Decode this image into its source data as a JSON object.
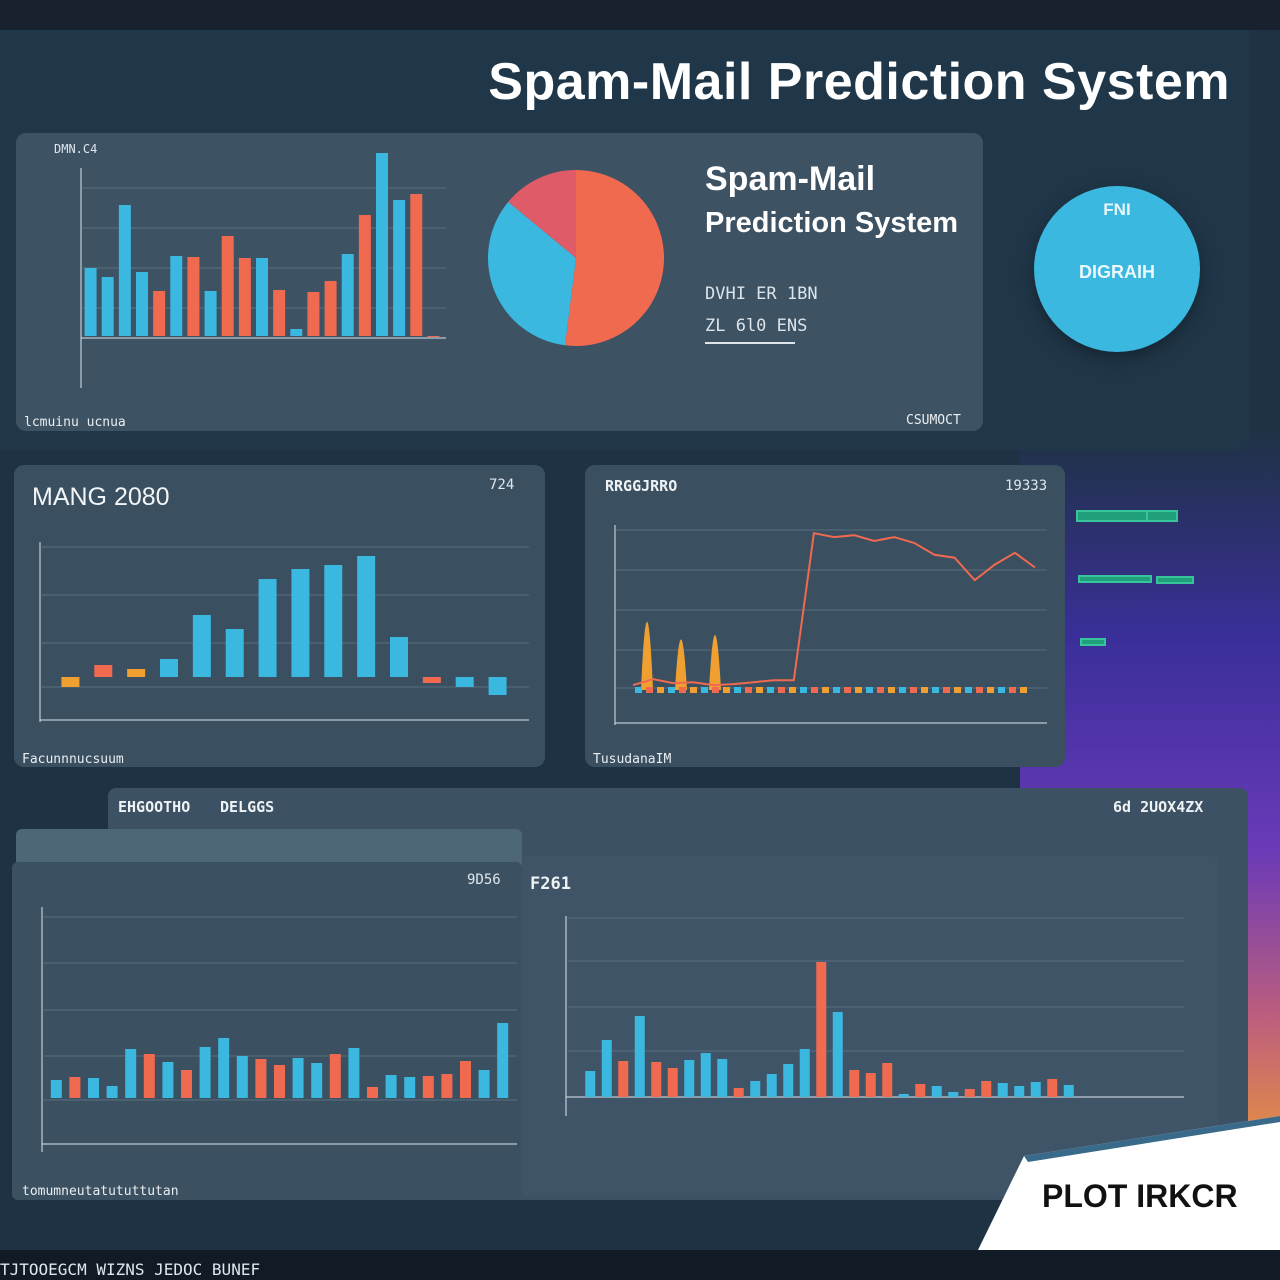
{
  "header": {
    "title": "Spam-Mail Prediction System"
  },
  "overview": {
    "chart_label": "DMN.C4",
    "footer_left": "lcmuinu ucnua",
    "footer_right": "CSUMOCT",
    "side_title": "Spam-Mail",
    "side_subtitle": "Prediction System",
    "side_line1": "DVHI ER 1BN",
    "side_line2": "ZL 6l0 ENS",
    "circle_top": "FNI",
    "circle_label": "DIGRAIH"
  },
  "panel_a": {
    "title": "MANG 2080",
    "corner": "724",
    "footer": "Facunnnucsuum"
  },
  "panel_b": {
    "title": "RRGGJRRO",
    "corner": "19333",
    "footer": "TusudanaIM"
  },
  "panel_c": {
    "tab_left": "EHGOOTHO",
    "tab_mid": "DELGGS",
    "corner": "9D56",
    "footer": "tomumneutatututtutan"
  },
  "panel_d": {
    "title": "F261",
    "header_right": "6d 2UOX4ZX"
  },
  "badge": {
    "label": "PLOT IRKCR"
  },
  "bottom": {
    "text": "TJTOOEGCM WIZNS JEDOC BUNEF"
  },
  "colors": {
    "blue": "#3bb8e0",
    "red": "#f06a50",
    "orange": "#f0a030",
    "background": "#1f3244"
  },
  "chart_data": [
    {
      "type": "bar",
      "id": "overview-bar",
      "colors": [
        "#3bb8e0",
        "#3bb8e0",
        "#3bb8e0",
        "#3bb8e0",
        "#f06a50",
        "#3bb8e0",
        "#f06a50",
        "#3bb8e0",
        "#f06a50",
        "#f06a50",
        "#3bb8e0",
        "#f06a50",
        "#3bb8e0",
        "#f06a50",
        "#f06a50",
        "#3bb8e0",
        "#f06a50",
        "#3bb8e0",
        "#3bb8e0",
        "#f06a50",
        "#f06a50"
      ],
      "values": [
        68,
        59,
        131,
        64,
        45,
        80,
        79,
        45,
        100,
        78,
        78,
        46,
        7,
        44,
        55,
        82,
        121,
        183,
        136,
        142,
        0
      ]
    },
    {
      "type": "pie",
      "id": "overview-pie",
      "values": [
        52,
        34,
        14
      ],
      "colors": [
        "#f06a50",
        "#3bb8e0",
        "#e05b68"
      ]
    },
    {
      "type": "bar",
      "id": "panel-a-bar",
      "colors": [
        "#f0a030",
        "#f06a50",
        "#f0a030",
        "#3bb8e0",
        "#3bb8e0",
        "#3bb8e0",
        "#3bb8e0",
        "#3bb8e0",
        "#3bb8e0",
        "#3bb8e0",
        "#3bb8e0",
        "#f06a50",
        "#3bb8e0",
        "#3bb8e0"
      ],
      "values": [
        -10,
        12,
        8,
        18,
        62,
        48,
        98,
        108,
        112,
        121,
        40,
        -6,
        -10,
        -18
      ]
    },
    {
      "type": "line",
      "id": "panel-b-line",
      "values": [
        5,
        11,
        7,
        8,
        5,
        6,
        8,
        10,
        10,
        160,
        156,
        158,
        152,
        156,
        150,
        138,
        135,
        112,
        128,
        140,
        125
      ]
    },
    {
      "type": "bar",
      "id": "panel-b-spikes",
      "values": [
        62,
        46,
        50
      ]
    },
    {
      "type": "bar",
      "id": "panel-c-bar",
      "colors": [
        "#3bb8e0",
        "#f06a50",
        "#3bb8e0",
        "#3bb8e0",
        "#3bb8e0",
        "#f06a50",
        "#3bb8e0",
        "#f06a50",
        "#3bb8e0",
        "#3bb8e0",
        "#3bb8e0",
        "#f06a50",
        "#f06a50",
        "#3bb8e0",
        "#3bb8e0",
        "#f06a50",
        "#3bb8e0",
        "#f06a50",
        "#3bb8e0",
        "#3bb8e0",
        "#f06a50",
        "#f06a50",
        "#f06a50",
        "#3bb8e0",
        "#3bb8e0"
      ],
      "values": [
        18,
        21,
        20,
        12,
        49,
        44,
        36,
        28,
        51,
        60,
        42,
        39,
        33,
        40,
        35,
        44,
        50,
        11,
        23,
        21,
        22,
        24,
        37,
        28,
        75
      ]
    },
    {
      "type": "bar",
      "id": "panel-d-bar",
      "colors": [
        "#3bb8e0",
        "#3bb8e0",
        "#f06a50",
        "#3bb8e0",
        "#f06a50",
        "#f06a50",
        "#3bb8e0",
        "#3bb8e0",
        "#3bb8e0",
        "#f06a50",
        "#3bb8e0",
        "#3bb8e0",
        "#3bb8e0",
        "#3bb8e0",
        "#f06a50",
        "#3bb8e0",
        "#f06a50",
        "#f06a50",
        "#f06a50",
        "#3bb8e0",
        "#f06a50",
        "#3bb8e0",
        "#3bb8e0",
        "#f06a50",
        "#f06a50",
        "#3bb8e0",
        "#3bb8e0",
        "#3bb8e0",
        "#f06a50",
        "#3bb8e0"
      ],
      "values": [
        26,
        57,
        36,
        81,
        35,
        29,
        37,
        44,
        38,
        9,
        16,
        23,
        33,
        48,
        135,
        85,
        27,
        24,
        34,
        3,
        13,
        11,
        5,
        8,
        16,
        14,
        11,
        15,
        18,
        12
      ]
    }
  ]
}
